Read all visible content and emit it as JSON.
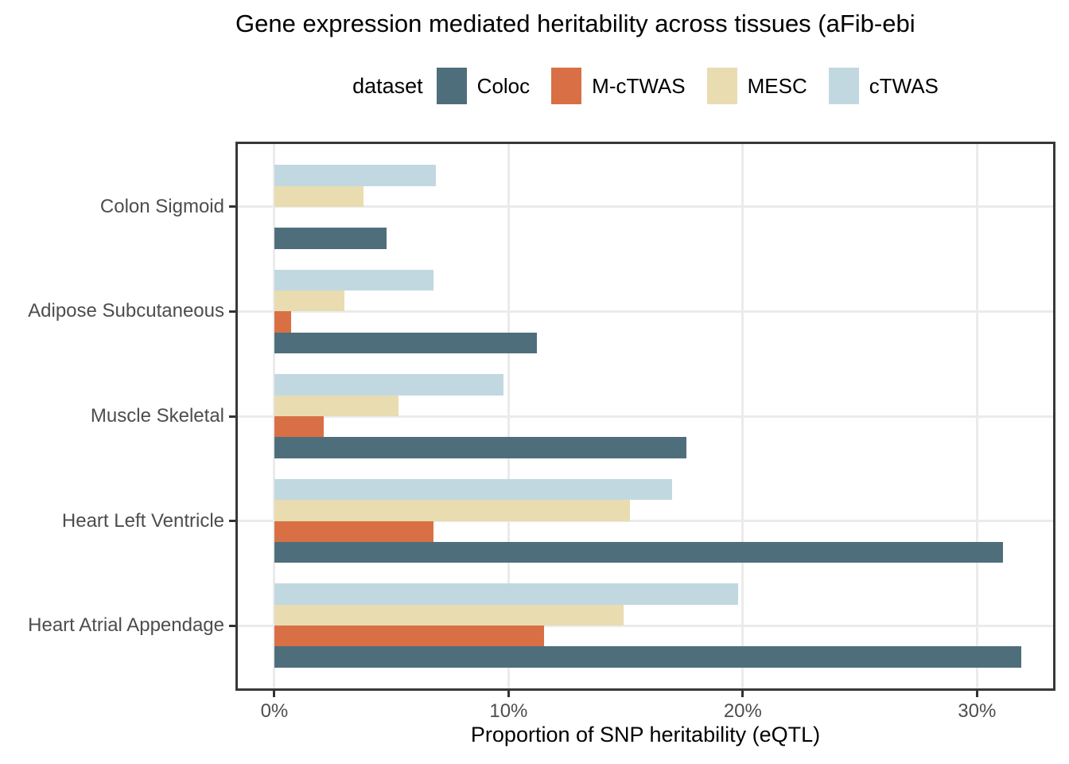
{
  "title": "Gene expression mediated heritability across tissues (aFib-ebi",
  "legend": {
    "label": "dataset",
    "entries": [
      {
        "name": "Coloc",
        "color": "#4f6e7c"
      },
      {
        "name": "M-cTWAS",
        "color": "#d97045"
      },
      {
        "name": "MESC",
        "color": "#e8dcb0"
      },
      {
        "name": "cTWAS",
        "color": "#c1d8e0"
      }
    ]
  },
  "chart_data": {
    "type": "bar",
    "orientation": "horizontal",
    "title": "Gene expression mediated heritability across tissues (aFib-ebi",
    "xlabel": "Proportion of SNP heritability (eQTL)",
    "ylabel": "",
    "categories": [
      "Colon Sigmoid",
      "Adipose Subcutaneous",
      "Muscle Skeletal",
      "Heart Left Ventricle",
      "Heart Atrial Appendage"
    ],
    "series": [
      {
        "name": "cTWAS",
        "color": "#c1d8e0",
        "values": [
          6.9,
          6.8,
          9.8,
          17.0,
          19.8
        ]
      },
      {
        "name": "MESC",
        "color": "#e8dcb0",
        "values": [
          3.8,
          3.0,
          5.3,
          15.2,
          14.9
        ]
      },
      {
        "name": "M-cTWAS",
        "color": "#d97045",
        "values": [
          0,
          0.7,
          2.1,
          6.8,
          11.5
        ]
      },
      {
        "name": "Coloc",
        "color": "#4f6e7c",
        "values": [
          4.8,
          11.2,
          17.6,
          31.1,
          31.9
        ]
      }
    ],
    "x_ticks": [
      "0%",
      "10%",
      "20%",
      "30%"
    ],
    "x_tick_values": [
      0,
      10,
      20,
      30
    ],
    "xlim": [
      -1.56,
      33.25
    ],
    "grid": "major-only",
    "legend_position": "top",
    "bar_row_order_top_to_bottom": [
      "cTWAS",
      "MESC",
      "M-cTWAS",
      "Coloc"
    ]
  },
  "colors": {
    "grid": "#ebebeb",
    "panel_border": "#383838",
    "axis_tick": "#333333",
    "axis_text": "#4d4d4d",
    "title_text": "#000000"
  }
}
